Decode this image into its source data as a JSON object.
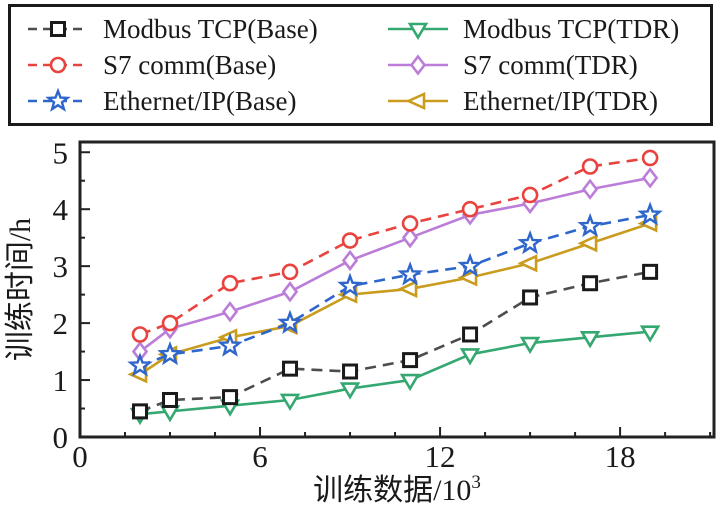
{
  "figure": {
    "background": "#ffffff",
    "frame_color": "#222222"
  },
  "chart_data": {
    "type": "line",
    "x": [
      2,
      3,
      5,
      7,
      9,
      11,
      13,
      15,
      17,
      19
    ],
    "series": [
      {
        "name": "Modbus TCP(Base)",
        "color": "#1a1a1a",
        "line_color": "#4d4d4d",
        "marker": "square",
        "line": "dashed",
        "values": [
          0.45,
          0.65,
          0.7,
          1.2,
          1.15,
          1.35,
          1.8,
          2.45,
          2.7,
          2.9
        ]
      },
      {
        "name": "S7 comm(Base)",
        "color": "#e8433e",
        "line_color": "#e8433e",
        "marker": "circle",
        "line": "dashed",
        "values": [
          1.8,
          2.0,
          2.7,
          2.9,
          3.45,
          3.75,
          4.0,
          4.25,
          4.75,
          4.9
        ]
      },
      {
        "name": "Ethernet/IP(Base)",
        "color": "#2e66cc",
        "line_color": "#2e66cc",
        "marker": "star",
        "line": "dashed",
        "values": [
          1.25,
          1.45,
          1.6,
          2.0,
          2.65,
          2.85,
          3.0,
          3.4,
          3.7,
          3.9
        ]
      },
      {
        "name": "Modbus TCP(TDR)",
        "color": "#35a871",
        "line_color": "#35a871",
        "marker": "triangle-down",
        "line": "solid",
        "values": [
          0.4,
          0.45,
          0.55,
          0.65,
          0.85,
          1.0,
          1.45,
          1.65,
          1.75,
          1.85
        ]
      },
      {
        "name": "S7 comm(TDR)",
        "color": "#bb7dd8",
        "line_color": "#bb7dd8",
        "marker": "diamond",
        "line": "solid",
        "values": [
          1.5,
          1.9,
          2.2,
          2.55,
          3.1,
          3.5,
          3.9,
          4.1,
          4.35,
          4.55
        ]
      },
      {
        "name": "Ethernet/IP(TDR)",
        "color": "#c99c1d",
        "line_color": "#c99c1d",
        "marker": "triangle-left",
        "line": "solid",
        "values": [
          1.1,
          1.45,
          1.75,
          1.95,
          2.5,
          2.6,
          2.8,
          3.05,
          3.4,
          3.75
        ]
      }
    ],
    "legend_order": [
      0,
      3,
      1,
      4,
      2,
      5
    ],
    "xlabel": {
      "text": "训练数据/10",
      "sup": "3"
    },
    "ylabel": "训练时间/h",
    "xlim": [
      0,
      21.13
    ],
    "ylim": [
      0,
      5.18
    ],
    "x_major_ticks": [
      0,
      6,
      12,
      18
    ],
    "x_minor_step": 1.5,
    "y_major_ticks": [
      0,
      1,
      2,
      3,
      4,
      5
    ],
    "y_minor_step": 0.5,
    "grid": "off",
    "legend_position": "top-outside",
    "title": ""
  }
}
